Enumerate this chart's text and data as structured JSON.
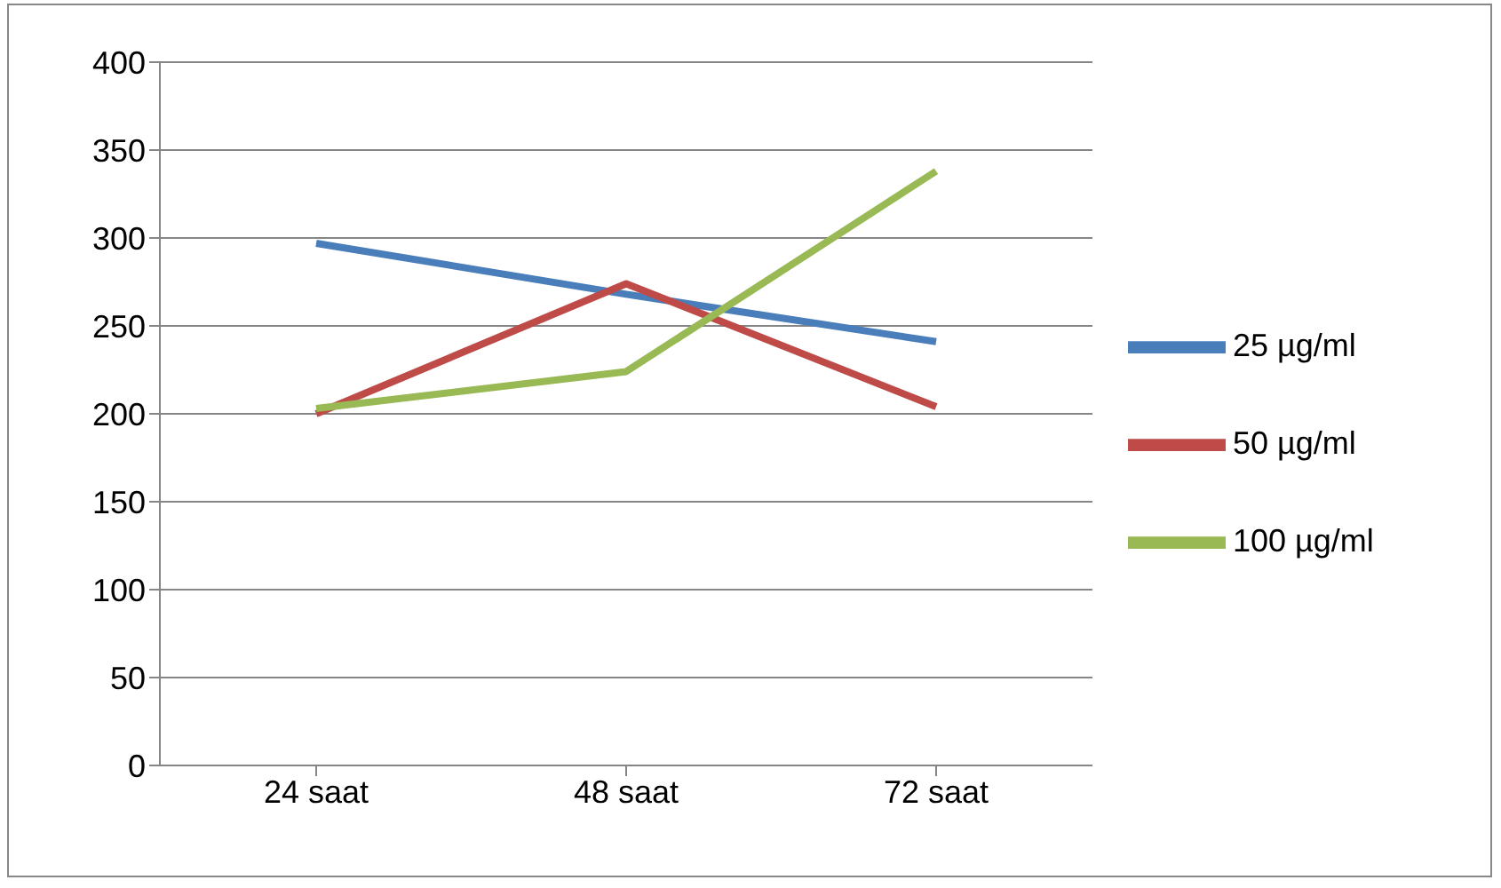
{
  "chart_data": {
    "type": "line",
    "categories": [
      "24 saat",
      "48 saat",
      "72 saat"
    ],
    "series": [
      {
        "name": "25 µg/ml",
        "color": "#4a7ebb",
        "values": [
          297,
          268,
          241
        ]
      },
      {
        "name": "50 µg/ml",
        "color": "#be4b48",
        "values": [
          200,
          274,
          204
        ]
      },
      {
        "name": "100 µg/ml",
        "color": "#98b954",
        "values": [
          203,
          224,
          338
        ]
      }
    ],
    "ylim": [
      0,
      400
    ],
    "yticks": [
      0,
      50,
      100,
      150,
      200,
      250,
      300,
      350,
      400
    ],
    "grid": "y",
    "legend": "right",
    "marker": "none",
    "line_style": "solid"
  }
}
